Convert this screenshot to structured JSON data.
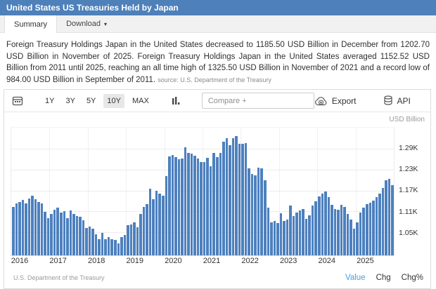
{
  "header": {
    "title": "United States US Treasuries Held by Japan"
  },
  "tabs": [
    {
      "label": "Summary",
      "active": true
    },
    {
      "label": "Download",
      "active": false,
      "has_dropdown": true
    }
  ],
  "description": {
    "text": "Foreign Treasury Holdings Japan in the United States decreased to 1185.50 USD Billion in December from 1202.70 USD Billion in November of 2025. Foreign Treasury Holdings Japan in the United States averaged 1152.52 USD Billion from 2011 until 2025, reaching an all time high of 1325.50 USD Billion in November of 2021 and a record low of 984.00 USD Billion in September of 2011.",
    "source_label": "source:",
    "source": "U.S. Department of the Treasury"
  },
  "toolbar": {
    "range_buttons": [
      "1Y",
      "3Y",
      "5Y",
      "10Y",
      "MAX"
    ],
    "active_range": "10Y",
    "compare_placeholder": "Compare +",
    "export_label": "Export",
    "api_label": "API",
    "icons": [
      "calendar-icon",
      "bar-chart-icon",
      "cloud-download-icon",
      "database-icon",
      "kebab-menu-icon"
    ]
  },
  "chart_data": {
    "type": "bar",
    "title": "United States US Treasuries Held by Japan",
    "unit_label": "USD Billion",
    "frequency": "monthly",
    "x_start": "2016-01",
    "x_end": "2025-12",
    "x_year_labels": [
      "2016",
      "2017",
      "2018",
      "2019",
      "2020",
      "2021",
      "2022",
      "2023",
      "2024",
      "2025"
    ],
    "y_ticks": [
      "1.29K",
      "1.23K",
      "1.17K",
      "1.11K",
      "1.05K"
    ],
    "y_tick_values": [
      1290,
      1230,
      1170,
      1110,
      1050
    ],
    "ylim": [
      984,
      1350
    ],
    "grid": true,
    "bar_color": "#4d80be",
    "series": [
      {
        "name": "Value",
        "values": [
          1122.5,
          1132.5,
          1137.1,
          1142.9,
          1133.3,
          1147.7,
          1154.3,
          1144.4,
          1136.9,
          1131.9,
          1108.6,
          1090.8,
          1103.1,
          1115.0,
          1120.0,
          1106.9,
          1111.0,
          1090.8,
          1113.0,
          1101.7,
          1096.0,
          1093.9,
          1084.1,
          1061.5,
          1065.8,
          1059.5,
          1043.5,
          1031.2,
          1048.8,
          1030.0,
          1035.5,
          1029.9,
          1028.0,
          1018.5,
          1036.2,
          1042.0,
          1069.6,
          1072.4,
          1078.1,
          1064.0,
          1101.7,
          1122.9,
          1130.9,
          1174.7,
          1145.8,
          1168.8,
          1160.8,
          1154.9,
          1211.7,
          1268.3,
          1271.7,
          1266.0,
          1260.4,
          1261.5,
          1293.0,
          1278.4,
          1275.7,
          1269.8,
          1260.7,
          1251.3,
          1251.6,
          1264.0,
          1240.3,
          1277.3,
          1266.1,
          1277.1,
          1310.0,
          1319.9,
          1299.5,
          1320.4,
          1325.5,
          1304.0,
          1303.1,
          1306.3,
          1232.4,
          1218.1,
          1212.8,
          1236.3,
          1234.0,
          1199.8,
          1120.2,
          1078.3,
          1082.6,
          1076.3,
          1104.4,
          1081.7,
          1087.1,
          1127.1,
          1096.8,
          1105.7,
          1112.5,
          1116.2,
          1087.7,
          1098.2,
          1127.1,
          1138.2,
          1153.1,
          1160.0,
          1168.0,
          1150.3,
          1128.1,
          1117.7,
          1115.7,
          1129.6,
          1123.3,
          1102.0,
          1087.1,
          1059.8,
          1079.3,
          1105.9,
          1120.8,
          1130.0,
          1135.4,
          1141.7,
          1151.0,
          1160.0,
          1178.0,
          1199.0,
          1202.7,
          1185.5
        ]
      }
    ]
  },
  "footer": {
    "source": "U.S. Department of the Treasury",
    "links": [
      {
        "label": "Value",
        "active": true
      },
      {
        "label": "Chg",
        "active": false
      },
      {
        "label": "Chg%",
        "active": false
      }
    ]
  }
}
